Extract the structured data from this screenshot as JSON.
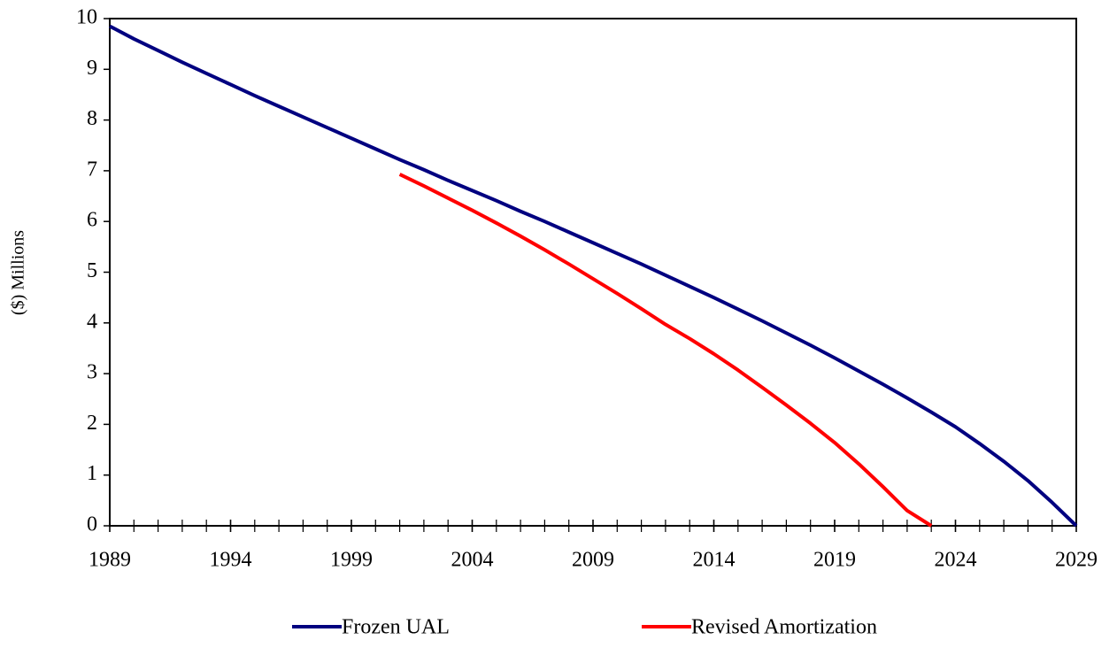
{
  "chart_data": {
    "type": "line",
    "ylabel": "($) Millions",
    "x": [
      1989,
      1990,
      1991,
      1992,
      1993,
      1994,
      1995,
      1996,
      1997,
      1998,
      1999,
      2000,
      2001,
      2002,
      2003,
      2004,
      2005,
      2006,
      2007,
      2008,
      2009,
      2010,
      2011,
      2012,
      2013,
      2014,
      2015,
      2016,
      2017,
      2018,
      2019,
      2020,
      2021,
      2022,
      2023,
      2024,
      2025,
      2026,
      2027,
      2028,
      2029
    ],
    "series": [
      {
        "name": "Frozen UAL",
        "color": "#000080",
        "values": [
          9.85,
          9.6,
          9.37,
          9.14,
          8.92,
          8.7,
          8.48,
          8.27,
          8.06,
          7.85,
          7.64,
          7.43,
          7.22,
          7.02,
          6.81,
          6.61,
          6.41,
          6.2,
          6.0,
          5.79,
          5.58,
          5.37,
          5.16,
          4.94,
          4.72,
          4.5,
          4.27,
          4.04,
          3.8,
          3.56,
          3.31,
          3.05,
          2.79,
          2.52,
          2.24,
          1.95,
          1.62,
          1.27,
          0.89,
          0.46,
          0
        ]
      },
      {
        "name": "Revised Amortization",
        "color": "#ff0000",
        "values": [
          null,
          null,
          null,
          null,
          null,
          null,
          null,
          null,
          null,
          null,
          null,
          null,
          6.93,
          6.7,
          6.46,
          6.22,
          5.97,
          5.71,
          5.44,
          5.16,
          4.87,
          4.58,
          4.28,
          3.97,
          3.69,
          3.39,
          3.07,
          2.73,
          2.38,
          2.02,
          1.64,
          1.22,
          0.77,
          0.3,
          0,
          null,
          null,
          null,
          null,
          null,
          null
        ]
      }
    ],
    "xlim": [
      1989,
      2029
    ],
    "xticks": [
      1989,
      1994,
      1999,
      2004,
      2009,
      2014,
      2019,
      2024,
      2029
    ],
    "ylim": [
      0,
      10
    ],
    "yticks": [
      0,
      1,
      2,
      3,
      4,
      5,
      6,
      7,
      8,
      9,
      10
    ],
    "grid": false,
    "legend": "bottom"
  }
}
